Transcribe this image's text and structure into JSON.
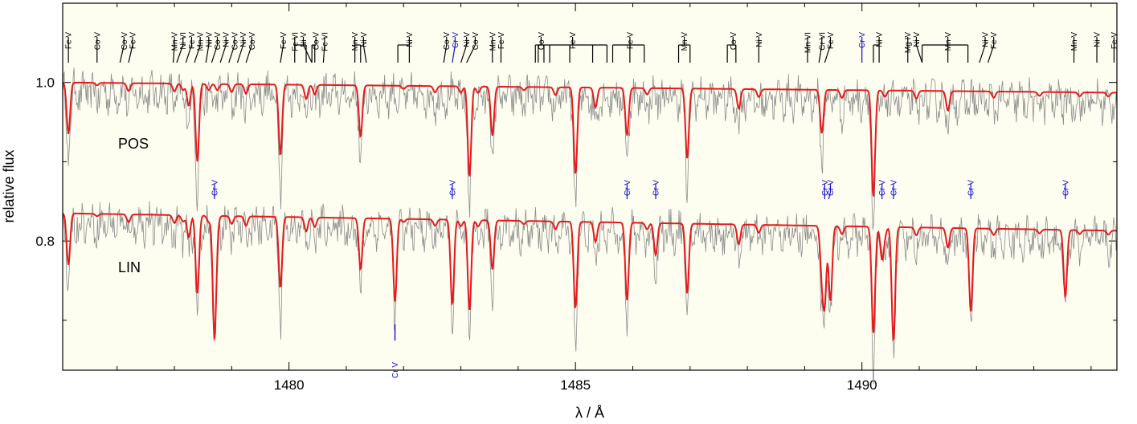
{
  "chart_data": {
    "type": "line",
    "xlabel": "λ / Å",
    "ylabel": "relative flux",
    "xlim": [
      1476.05,
      1494.45
    ],
    "ylim": [
      0.637,
      1.1
    ],
    "xticks": [
      1480,
      1485,
      1490
    ],
    "yticks": [
      0.8,
      1.0
    ],
    "panels": [
      {
        "label": "POS",
        "offset": 0.0
      },
      {
        "label": "LIN",
        "offset": -0.165
      }
    ],
    "colors": {
      "background": "#fdfdf0",
      "observation": "#8c8c8c",
      "model": "#e41a1c",
      "identified_line": "#000000",
      "cr_line": "#1010d0"
    },
    "series": [],
    "absorption_lines": [
      {
        "x": 1476.15,
        "d": 0.065
      },
      {
        "x": 1476.65,
        "d": 0.003
      },
      {
        "x": 1477.2,
        "d": 0.01
      },
      {
        "x": 1478.0,
        "d": 0.01
      },
      {
        "x": 1478.15,
        "d": 0.008
      },
      {
        "x": 1478.25,
        "d": 0.028
      },
      {
        "x": 1478.4,
        "d": 0.098
      },
      {
        "x": 1478.6,
        "d": 0.008
      },
      {
        "x": 1478.75,
        "d": 0.008
      },
      {
        "x": 1479.0,
        "d": 0.01
      },
      {
        "x": 1479.25,
        "d": 0.012
      },
      {
        "x": 1479.85,
        "d": 0.09
      },
      {
        "x": 1480.3,
        "d": 0.018
      },
      {
        "x": 1480.45,
        "d": 0.012
      },
      {
        "x": 1481.25,
        "d": 0.065
      },
      {
        "x": 1482.0,
        "d": 0.004
      },
      {
        "x": 1482.55,
        "d": 0.008
      },
      {
        "x": 1483.0,
        "d": 0.008
      },
      {
        "x": 1483.15,
        "d": 0.115
      },
      {
        "x": 1483.3,
        "d": 0.008
      },
      {
        "x": 1483.55,
        "d": 0.062
      },
      {
        "x": 1484.1,
        "d": 0.004
      },
      {
        "x": 1484.65,
        "d": 0.01
      },
      {
        "x": 1485.0,
        "d": 0.11
      },
      {
        "x": 1485.35,
        "d": 0.025
      },
      {
        "x": 1485.9,
        "d": 0.06
      },
      {
        "x": 1486.25,
        "d": 0.008
      },
      {
        "x": 1486.95,
        "d": 0.088
      },
      {
        "x": 1487.85,
        "d": 0.025
      },
      {
        "x": 1488.2,
        "d": 0.01
      },
      {
        "x": 1489.3,
        "d": 0.055
      },
      {
        "x": 1489.65,
        "d": 0.01
      },
      {
        "x": 1490.2,
        "d": 0.135
      },
      {
        "x": 1490.4,
        "d": 0.008
      },
      {
        "x": 1490.95,
        "d": 0.01
      },
      {
        "x": 1491.5,
        "d": 0.025
      },
      {
        "x": 1492.3,
        "d": 0.008
      },
      {
        "x": 1493.1,
        "d": 0.005
      },
      {
        "x": 1493.8,
        "d": 0.005
      },
      {
        "x": 1494.3,
        "d": 0.005
      }
    ],
    "cr_lines": [
      {
        "x": 1478.7,
        "d": 0.155
      },
      {
        "x": 1481.85,
        "d": 0.105
      },
      {
        "x": 1482.85,
        "d": 0.108
      },
      {
        "x": 1485.9,
        "d": 0.038
      },
      {
        "x": 1486.4,
        "d": 0.04
      },
      {
        "x": 1489.35,
        "d": 0.09
      },
      {
        "x": 1489.45,
        "d": 0.095
      },
      {
        "x": 1490.35,
        "d": 0.04
      },
      {
        "x": 1490.55,
        "d": 0.145
      },
      {
        "x": 1491.9,
        "d": 0.105
      },
      {
        "x": 1493.55,
        "d": 0.085
      }
    ],
    "top_line_ids": [
      {
        "label": "Fe V",
        "x": 1476.15,
        "stems": [
          1476.15
        ]
      },
      {
        "label": "Co V",
        "x": 1476.65,
        "stems": [
          1476.65
        ]
      },
      {
        "label": "Co V",
        "x": 1477.12,
        "stems": [
          1477.05
        ]
      },
      {
        "label": "Fe V",
        "x": 1477.27,
        "stems": [
          1477.2
        ]
      },
      {
        "label": "Mn V",
        "x": 1478.0,
        "stems": [
          1477.98
        ]
      },
      {
        "label": "Ni VI",
        "x": 1478.15,
        "stems": [
          1478.04
        ]
      },
      {
        "label": "Fe V",
        "x": 1478.3,
        "stems": [
          1478.2
        ]
      },
      {
        "label": "Mn V",
        "x": 1478.45,
        "stems": [
          1478.35
        ]
      },
      {
        "label": "Ni V",
        "x": 1478.6,
        "stems": [
          1478.55
        ]
      },
      {
        "label": "Co V",
        "x": 1478.75,
        "stems": [
          1478.65
        ]
      },
      {
        "label": "Ni V",
        "x": 1478.9,
        "stems": [
          1478.8
        ]
      },
      {
        "label": "Co V",
        "x": 1479.05,
        "stems": [
          1478.95
        ]
      },
      {
        "label": "Ni V",
        "x": 1479.2,
        "stems": [
          1479.1
        ]
      },
      {
        "label": "Co V",
        "x": 1479.35,
        "stems": [
          1479.25
        ]
      },
      {
        "label": "Fe V",
        "x": 1479.9,
        "stems": [
          1479.85
        ]
      },
      {
        "label": "Fe VI",
        "x": 1480.1,
        "stems": [
          1480.1,
          1480.3
        ]
      },
      {
        "label": "Ni V",
        "x": 1480.25,
        "stems": [
          1480.4
        ]
      },
      {
        "label": "Co V",
        "x": 1480.47,
        "stems": [
          1480.4,
          1480.45
        ]
      },
      {
        "label": "Fe VI",
        "x": 1480.62,
        "stems": [
          1480.6
        ]
      },
      {
        "label": "Mn V",
        "x": 1481.15,
        "stems": [
          1481.15,
          1481.25
        ]
      },
      {
        "label": "Ni V",
        "x": 1481.3,
        "stems": [
          1481.35
        ]
      },
      {
        "label": "Ni V",
        "x": 1482.1,
        "stems": [
          1481.9,
          1482.1
        ]
      },
      {
        "label": "Co V",
        "x": 1482.75,
        "stems": [
          1482.7
        ]
      },
      {
        "label": "Ni V",
        "x": 1483.1,
        "stems": [
          1483.0
        ]
      },
      {
        "label": "Co V",
        "x": 1483.25,
        "stems": [
          1483.1
        ]
      },
      {
        "label": "Mn V",
        "x": 1483.55,
        "stems": [
          1483.55
        ]
      },
      {
        "label": "Fe V",
        "x": 1483.7,
        "stems": [
          1483.7
        ]
      },
      {
        "label": "Co V",
        "x": 1484.4,
        "stems": [
          1484.3,
          1484.45
        ]
      },
      {
        "label": "Fe V",
        "x": 1484.95,
        "stems": [
          1484.35,
          1484.55,
          1484.9,
          1485.3,
          1485.55
        ]
      },
      {
        "label": "Fe V",
        "x": 1485.95,
        "stems": [
          1485.65,
          1485.95,
          1486.2
        ]
      },
      {
        "label": "Mn V",
        "x": 1486.9,
        "stems": [
          1486.8,
          1487.0
        ]
      },
      {
        "label": "Co V",
        "x": 1487.75,
        "stems": [
          1487.65,
          1487.8
        ]
      },
      {
        "label": "Ni V",
        "x": 1488.2,
        "stems": [
          1488.2
        ]
      },
      {
        "label": "Mn VI",
        "x": 1489.05,
        "stems": [
          1489.05
        ]
      },
      {
        "label": "Cr VI",
        "x": 1489.3,
        "stems": [
          1489.25
        ]
      },
      {
        "label": "Fe V",
        "x": 1489.45,
        "stems": [
          1489.35
        ]
      },
      {
        "label": "Ni V",
        "x": 1490.3,
        "stems": [
          1490.2,
          1490.3
        ]
      },
      {
        "label": "Mg IV",
        "x": 1490.8,
        "stems": [
          1490.8
        ]
      },
      {
        "label": "Ni V",
        "x": 1490.95,
        "stems": [
          1491.05
        ]
      },
      {
        "label": "Mn V",
        "x": 1491.5,
        "stems": [
          1491.05,
          1491.5,
          1491.85
        ]
      },
      {
        "label": "Ni V",
        "x": 1492.15,
        "stems": [
          1492.05
        ]
      },
      {
        "label": "Fe V",
        "x": 1492.3,
        "stems": [
          1492.2
        ]
      },
      {
        "label": "Mn V",
        "x": 1493.7,
        "stems": [
          1493.7
        ]
      },
      {
        "label": "Ni V",
        "x": 1494.1,
        "stems": [
          1494.1
        ]
      },
      {
        "label": "Fe V",
        "x": 1494.4,
        "stems": [
          1494.4
        ]
      }
    ],
    "blue_top_ids": [
      {
        "label": "Cr V",
        "x": 1482.9,
        "stems": [
          1482.85
        ]
      },
      {
        "label": "Cr V",
        "x": 1490.0,
        "stems": [
          1490.0
        ]
      }
    ],
    "middle_cr_ids": [
      {
        "label": "Cr V",
        "x": 1478.7,
        "stems": [
          1478.7
        ]
      },
      {
        "label": "Cr V",
        "x": 1482.85,
        "stems": [
          1482.85
        ]
      },
      {
        "label": "Cr V",
        "x": 1485.9,
        "stems": [
          1485.9
        ]
      },
      {
        "label": "Cr V",
        "x": 1486.4,
        "stems": [
          1486.4
        ]
      },
      {
        "label": "Cr V",
        "x": 1489.35,
        "stems": [
          1489.35
        ]
      },
      {
        "label": "Cr V",
        "x": 1489.45,
        "stems": [
          1489.42
        ]
      },
      {
        "label": "Cr V",
        "x": 1490.35,
        "stems": [
          1490.35
        ]
      },
      {
        "label": "Cr V",
        "x": 1490.55,
        "stems": [
          1490.55
        ]
      },
      {
        "label": "Cr V",
        "x": 1491.9,
        "stems": [
          1491.9
        ]
      },
      {
        "label": "Cr V",
        "x": 1493.55,
        "stems": [
          1493.55
        ]
      }
    ],
    "bottom_cr_ids": [
      {
        "label": "Cr V",
        "x": 1481.85,
        "stems": [
          1481.85
        ]
      }
    ]
  }
}
